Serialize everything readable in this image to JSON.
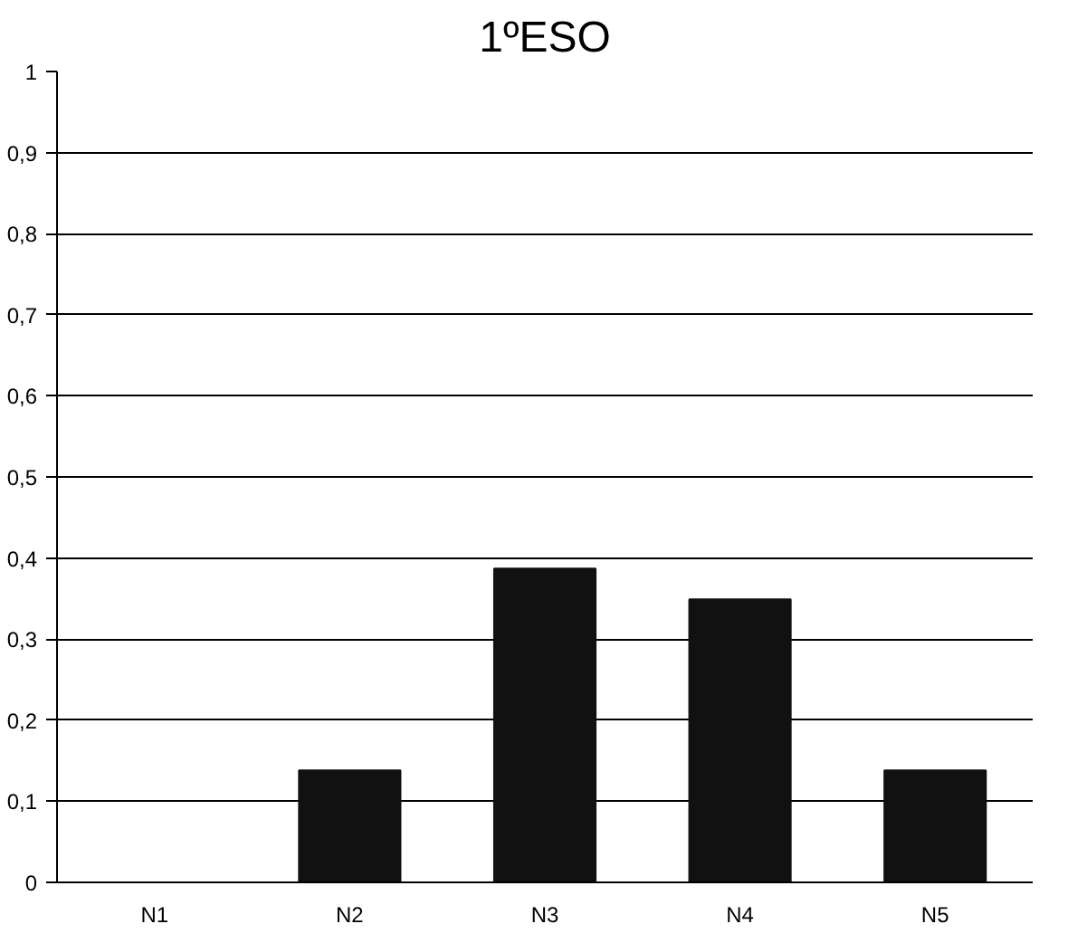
{
  "chart_data": {
    "type": "bar",
    "title": "1ºESO",
    "categories": [
      "N1",
      "N2",
      "N3",
      "N4",
      "N5"
    ],
    "values": [
      0,
      0.138,
      0.387,
      0.349,
      0.138
    ],
    "color": "#111111",
    "ylim": [
      0,
      1
    ],
    "yticks": [
      0,
      {
        "value": 0.1,
        "label": "0,1"
      },
      {
        "value": 0.2,
        "label": "0,2"
      },
      {
        "value": 0.3,
        "label": "0,3"
      },
      {
        "value": 0.4,
        "label": "0,4"
      },
      {
        "value": 0.5,
        "label": "0,5"
      },
      {
        "value": 0.6,
        "label": "0,6"
      },
      {
        "value": 0.7,
        "label": "0,7"
      },
      {
        "value": 0.8,
        "label": "0,8"
      },
      {
        "value": 0.9,
        "label": "0,9"
      },
      1
    ],
    "grid": "y"
  }
}
